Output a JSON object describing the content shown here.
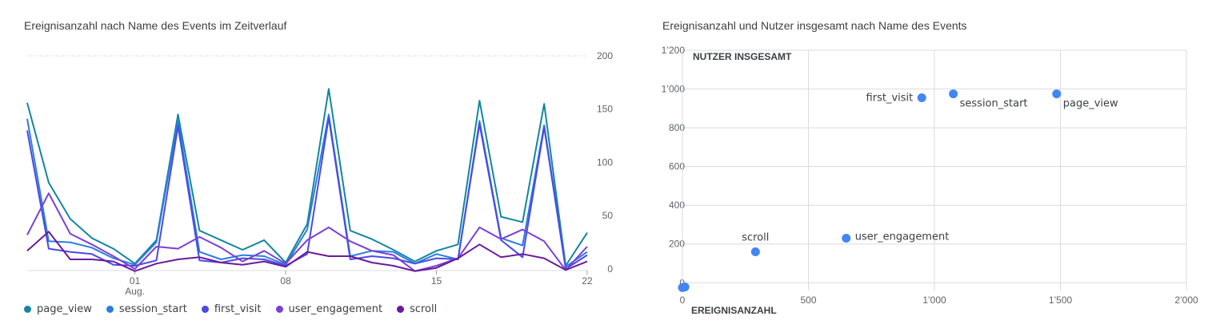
{
  "left_title": "Ereignisanzahl nach Name des Events im Zeitverlauf",
  "right_title": "Ereignisanzahl und Nutzer insgesamt nach Name des Events",
  "chart_data": [
    {
      "type": "line",
      "title": "Ereignisanzahl nach Name des Events im Zeitverlauf",
      "x_tick_labels": [
        {
          "index": 5,
          "label": "01",
          "sublabel": "Aug."
        },
        {
          "index": 12,
          "label": "08",
          "sublabel": ""
        },
        {
          "index": 19,
          "label": "15",
          "sublabel": ""
        },
        {
          "index": 26,
          "label": "22",
          "sublabel": ""
        }
      ],
      "y_ticks": [
        0,
        50,
        100,
        150,
        200
      ],
      "ylim": [
        -6,
        200
      ],
      "legend_position": "bottom-left",
      "series": [
        {
          "name": "page_view",
          "color": "#12869e",
          "values": [
            156,
            81,
            47,
            29,
            19,
            5,
            27,
            145,
            36,
            27,
            18,
            27,
            6,
            42,
            169,
            36,
            28,
            18,
            7,
            17,
            23,
            158,
            49,
            44,
            155,
            3,
            34
          ]
        },
        {
          "name": "session_start",
          "color": "#2b7de0",
          "values": [
            141,
            26,
            25,
            20,
            10,
            4,
            25,
            139,
            16,
            9,
            13,
            12,
            4,
            37,
            145,
            12,
            17,
            16,
            5,
            14,
            9,
            139,
            29,
            22,
            135,
            2,
            16
          ]
        },
        {
          "name": "first_visit",
          "color": "#4a4ae6",
          "values": [
            130,
            19,
            16,
            14,
            4,
            3,
            8,
            134,
            8,
            6,
            10,
            9,
            3,
            14,
            142,
            9,
            12,
            10,
            5,
            10,
            9,
            136,
            27,
            11,
            133,
            0,
            13
          ]
        },
        {
          "name": "user_engagement",
          "color": "#7b3fd6",
          "values": [
            32,
            71,
            33,
            23,
            12,
            0,
            21,
            19,
            30,
            20,
            7,
            17,
            5,
            27,
            39,
            26,
            17,
            13,
            -2,
            3,
            10,
            39,
            28,
            37,
            26,
            -1,
            21
          ]
        },
        {
          "name": "scroll",
          "color": "#6a1b9a",
          "values": [
            17,
            35,
            9,
            9,
            7,
            -2,
            5,
            9,
            11,
            6,
            4,
            7,
            2,
            16,
            12,
            12,
            6,
            3,
            -2,
            1,
            10,
            23,
            11,
            14,
            10,
            -1,
            7
          ]
        }
      ]
    },
    {
      "type": "scatter",
      "title": "Ereignisanzahl und Nutzer insgesamt nach Name des Events",
      "xlabel": "EREIGNISANZAHL",
      "ylabel": "NUTZER INSGESAMT",
      "xlim": [
        0,
        2000
      ],
      "ylim": [
        -40,
        1200
      ],
      "x_ticks": [
        0,
        500,
        1000,
        1500,
        2000
      ],
      "x_tick_labels": [
        "0",
        "500",
        "1’000",
        "1’500",
        "2’000"
      ],
      "y_ticks": [
        0,
        200,
        400,
        600,
        800,
        1000,
        1200
      ],
      "y_tick_labels": [
        "0",
        "200",
        "400",
        "600",
        "800",
        "1’000",
        "1’200"
      ],
      "point_color": "#4285f4",
      "points": [
        {
          "label": "page_view",
          "x": 1485,
          "y": 975,
          "label_side": "below-right"
        },
        {
          "label": "session_start",
          "x": 1075,
          "y": 975,
          "label_side": "below-right"
        },
        {
          "label": "first_visit",
          "x": 950,
          "y": 955,
          "label_side": "left"
        },
        {
          "label": "user_engagement",
          "x": 650,
          "y": 230,
          "label_side": "right"
        },
        {
          "label": "scroll",
          "x": 290,
          "y": 160,
          "label_side": "above"
        },
        {
          "label": "",
          "x": 0,
          "y": -25,
          "label_side": "none"
        },
        {
          "label": "",
          "x": 10,
          "y": -22,
          "label_side": "none"
        }
      ]
    }
  ]
}
